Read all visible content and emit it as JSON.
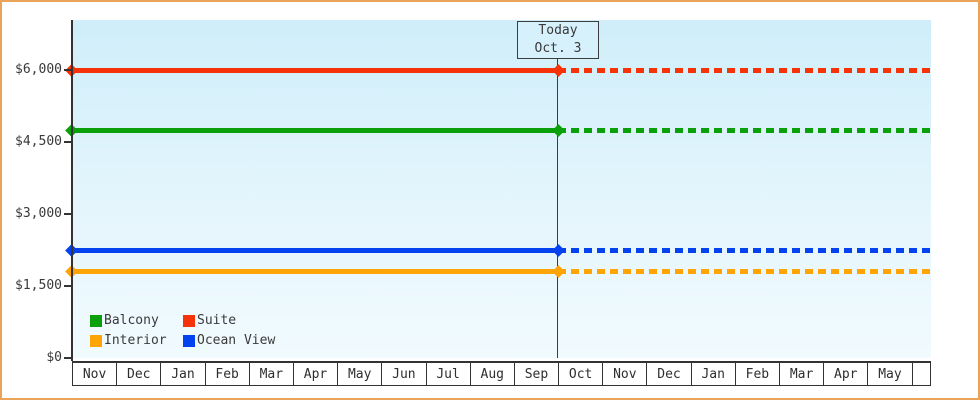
{
  "window": {
    "border_color": "#e9a45a"
  },
  "chart_data": {
    "type": "line",
    "title": "",
    "categories": [
      "Nov",
      "Dec",
      "Jan",
      "Feb",
      "Mar",
      "Apr",
      "May",
      "Jun",
      "Jul",
      "Aug",
      "Sep",
      "Oct",
      "Nov",
      "Dec",
      "Jan",
      "Feb",
      "Mar",
      "Apr",
      "May"
    ],
    "y_axis": {
      "min": 0,
      "max": 6000,
      "ticks": [
        {
          "value": 6000,
          "label": "$6,000"
        },
        {
          "value": 4500,
          "label": "$4,500"
        },
        {
          "value": 3000,
          "label": "$3,000"
        },
        {
          "value": 1500,
          "label": "$1,500"
        },
        {
          "value": 0,
          "label": "$0"
        }
      ]
    },
    "series": [
      {
        "name": "Suite",
        "value": 6000,
        "color": "#f63208"
      },
      {
        "name": "Balcony",
        "value": 4750,
        "color": "#0aa00a"
      },
      {
        "name": "Ocean View",
        "value": 2250,
        "color": "#0542ef"
      },
      {
        "name": "Interior",
        "value": 1800,
        "color": "#ffa405"
      }
    ],
    "line_style": {
      "past": "solid",
      "future": "dotted"
    },
    "today": {
      "line1": "Today",
      "line2": "Oct. 3",
      "boundary_month_index": 11
    },
    "legend": {
      "rows": [
        [
          "Balcony",
          "Suite"
        ],
        [
          "Interior",
          "Ocean View"
        ]
      ]
    },
    "background_gradient": [
      "#cfeefa",
      "#f1fbfe"
    ],
    "legend_position": "bottom-left",
    "grid": false
  }
}
